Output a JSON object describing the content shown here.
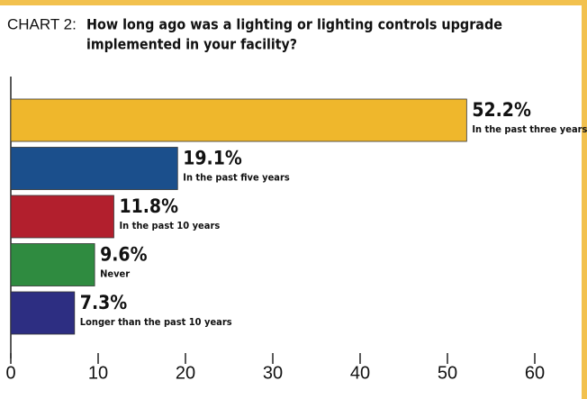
{
  "chart_data": {
    "type": "bar",
    "orientation": "horizontal",
    "label": "CHART 2:",
    "title": [
      "How long ago was a lighting or lighting controls upgrade",
      "implemented in your facility?"
    ],
    "categories": [
      "In the past three years",
      "In the past five years",
      "In the past 10 years",
      "Never",
      "Longer than the past 10 years"
    ],
    "values": [
      52.2,
      19.1,
      11.8,
      9.6,
      7.3
    ],
    "value_labels": [
      "52.2%",
      "19.1%",
      "11.8%",
      "9.6%",
      "7.3%"
    ],
    "colors": [
      "#efb72c",
      "#1b4f8c",
      "#b21f2d",
      "#2f8b40",
      "#2d2e82"
    ],
    "xlim": [
      0,
      60
    ],
    "xticks": [
      0,
      10,
      20,
      30,
      40,
      50,
      60
    ]
  }
}
